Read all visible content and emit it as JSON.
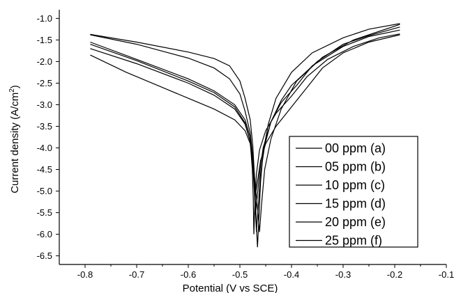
{
  "chart_data": {
    "type": "line",
    "xlabel": "Potential (V vs SCE)",
    "ylabel_main": "Current density (A/cm",
    "ylabel_sup": "2",
    "ylabel_end": ")",
    "xlim": [
      -0.85,
      -0.1
    ],
    "ylim": [
      -6.7,
      -0.8
    ],
    "xticks": [
      -0.8,
      -0.7,
      -0.6,
      -0.5,
      -0.4,
      -0.3,
      -0.2,
      -0.1
    ],
    "xtick_labels": [
      "-0.8",
      "-0.7",
      "-0.6",
      "-0.5",
      "-0.4",
      "-0.3",
      "-0.2",
      "-0.1"
    ],
    "yticks": [
      -1.0,
      -1.5,
      -2.0,
      -2.5,
      -3.0,
      -3.5,
      -4.0,
      -4.5,
      -5.0,
      -5.5,
      -6.0,
      -6.5
    ],
    "ytick_labels": [
      "-1.0",
      "-1.5",
      "-2.0",
      "-2.5",
      "-3.0",
      "-3.5",
      "-4.0",
      "-4.5",
      "-5.0",
      "-5.5",
      "-6.0",
      "-6.5"
    ],
    "legend_position": "bottom-right",
    "line_color": "#000000",
    "series": [
      {
        "name": "00 ppm (a)",
        "points": [
          [
            -0.79,
            -1.37
          ],
          [
            -0.7,
            -1.55
          ],
          [
            -0.6,
            -1.78
          ],
          [
            -0.55,
            -1.93
          ],
          [
            -0.52,
            -2.1
          ],
          [
            -0.5,
            -2.45
          ],
          [
            -0.49,
            -2.85
          ],
          [
            -0.48,
            -3.35
          ],
          [
            -0.475,
            -3.95
          ],
          [
            -0.472,
            -4.6
          ],
          [
            -0.47,
            -5.2
          ],
          [
            -0.468,
            -5.8
          ],
          [
            -0.466,
            -6.3
          ],
          [
            -0.463,
            -5.6
          ],
          [
            -0.46,
            -4.8
          ],
          [
            -0.455,
            -4.1
          ],
          [
            -0.445,
            -3.45
          ],
          [
            -0.43,
            -2.85
          ],
          [
            -0.4,
            -2.25
          ],
          [
            -0.36,
            -1.8
          ],
          [
            -0.3,
            -1.45
          ],
          [
            -0.25,
            -1.25
          ],
          [
            -0.19,
            -1.12
          ]
        ]
      },
      {
        "name": "05 ppm (b)",
        "points": [
          [
            -0.79,
            -1.38
          ],
          [
            -0.7,
            -1.6
          ],
          [
            -0.6,
            -1.92
          ],
          [
            -0.55,
            -2.15
          ],
          [
            -0.52,
            -2.4
          ],
          [
            -0.5,
            -2.75
          ],
          [
            -0.49,
            -3.15
          ],
          [
            -0.48,
            -3.65
          ],
          [
            -0.475,
            -4.2
          ],
          [
            -0.47,
            -4.9
          ],
          [
            -0.465,
            -5.5
          ],
          [
            -0.462,
            -5.95
          ],
          [
            -0.458,
            -5.3
          ],
          [
            -0.452,
            -4.5
          ],
          [
            -0.44,
            -3.8
          ],
          [
            -0.42,
            -3.1
          ],
          [
            -0.39,
            -2.45
          ],
          [
            -0.34,
            -1.9
          ],
          [
            -0.28,
            -1.5
          ],
          [
            -0.23,
            -1.3
          ],
          [
            -0.19,
            -1.14
          ]
        ]
      },
      {
        "name": "10 ppm (c)",
        "points": [
          [
            -0.79,
            -1.55
          ],
          [
            -0.7,
            -1.95
          ],
          [
            -0.6,
            -2.4
          ],
          [
            -0.55,
            -2.68
          ],
          [
            -0.51,
            -3.0
          ],
          [
            -0.49,
            -3.35
          ],
          [
            -0.48,
            -3.75
          ],
          [
            -0.475,
            -4.3
          ],
          [
            -0.472,
            -4.9
          ],
          [
            -0.47,
            -5.45
          ],
          [
            -0.468,
            -5.95
          ],
          [
            -0.464,
            -5.3
          ],
          [
            -0.46,
            -4.6
          ],
          [
            -0.452,
            -3.95
          ],
          [
            -0.44,
            -3.4
          ],
          [
            -0.42,
            -2.9
          ],
          [
            -0.4,
            -2.55
          ],
          [
            -0.35,
            -2.0
          ],
          [
            -0.3,
            -1.6
          ],
          [
            -0.25,
            -1.4
          ],
          [
            -0.19,
            -1.2
          ]
        ]
      },
      {
        "name": "15 ppm (d)",
        "points": [
          [
            -0.79,
            -1.6
          ],
          [
            -0.7,
            -1.98
          ],
          [
            -0.6,
            -2.45
          ],
          [
            -0.55,
            -2.72
          ],
          [
            -0.51,
            -3.05
          ],
          [
            -0.49,
            -3.42
          ],
          [
            -0.48,
            -3.85
          ],
          [
            -0.475,
            -4.4
          ],
          [
            -0.472,
            -5.0
          ],
          [
            -0.47,
            -5.55
          ],
          [
            -0.467,
            -5.2
          ],
          [
            -0.462,
            -4.6
          ],
          [
            -0.455,
            -4.0
          ],
          [
            -0.44,
            -3.4
          ],
          [
            -0.42,
            -2.95
          ],
          [
            -0.39,
            -2.55
          ],
          [
            -0.36,
            -2.1
          ],
          [
            -0.3,
            -1.65
          ],
          [
            -0.25,
            -1.42
          ],
          [
            -0.19,
            -1.27
          ]
        ]
      },
      {
        "name": "20 ppm (e)",
        "points": [
          [
            -0.79,
            -1.7
          ],
          [
            -0.7,
            -2.05
          ],
          [
            -0.6,
            -2.5
          ],
          [
            -0.55,
            -2.78
          ],
          [
            -0.51,
            -3.1
          ],
          [
            -0.49,
            -3.45
          ],
          [
            -0.48,
            -3.85
          ],
          [
            -0.476,
            -4.5
          ],
          [
            -0.474,
            -5.2
          ],
          [
            -0.473,
            -6.0
          ],
          [
            -0.471,
            -5.3
          ],
          [
            -0.468,
            -4.6
          ],
          [
            -0.462,
            -4.05
          ],
          [
            -0.45,
            -3.6
          ],
          [
            -0.43,
            -3.2
          ],
          [
            -0.4,
            -2.8
          ],
          [
            -0.37,
            -2.35
          ],
          [
            -0.33,
            -1.95
          ],
          [
            -0.28,
            -1.65
          ],
          [
            -0.23,
            -1.45
          ],
          [
            -0.19,
            -1.36
          ]
        ]
      },
      {
        "name": "25 ppm (f)",
        "points": [
          [
            -0.79,
            -1.85
          ],
          [
            -0.72,
            -2.25
          ],
          [
            -0.65,
            -2.6
          ],
          [
            -0.6,
            -2.85
          ],
          [
            -0.55,
            -3.1
          ],
          [
            -0.51,
            -3.35
          ],
          [
            -0.49,
            -3.6
          ],
          [
            -0.48,
            -3.9
          ],
          [
            -0.475,
            -4.4
          ],
          [
            -0.47,
            -5.1
          ],
          [
            -0.465,
            -4.7
          ],
          [
            -0.46,
            -4.3
          ],
          [
            -0.45,
            -3.9
          ],
          [
            -0.43,
            -3.5
          ],
          [
            -0.4,
            -3.05
          ],
          [
            -0.37,
            -2.6
          ],
          [
            -0.34,
            -2.15
          ],
          [
            -0.3,
            -1.8
          ],
          [
            -0.25,
            -1.55
          ],
          [
            -0.19,
            -1.38
          ]
        ]
      }
    ]
  }
}
